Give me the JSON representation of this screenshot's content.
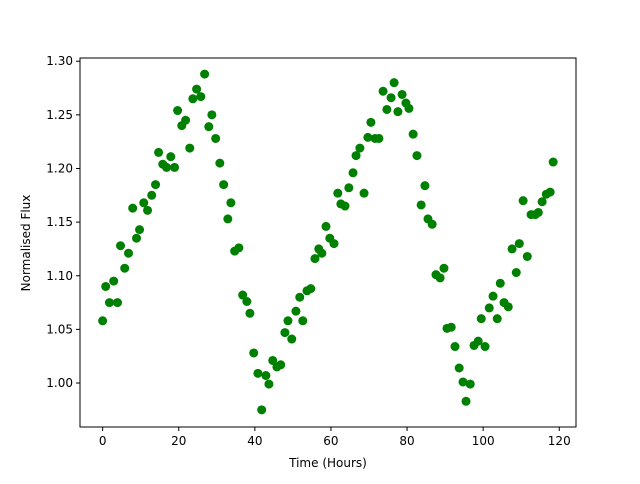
{
  "chart_data": {
    "type": "scatter",
    "xlabel": "Time (Hours)",
    "ylabel": "Normalised Flux",
    "color": "#008000",
    "x": [
      0,
      0.8,
      1.8,
      2.9,
      3.9,
      4.7,
      5.8,
      6.8,
      7.9,
      8.9,
      9.7,
      10.8,
      11.8,
      12.9,
      13.9,
      14.7,
      15.8,
      16.8,
      17.9,
      18.9,
      19.7,
      20.8,
      21.8,
      22.9,
      23.7,
      24.7,
      25.8,
      26.8,
      27.9,
      28.7,
      29.7,
      30.8,
      31.8,
      32.9,
      33.7,
      34.7,
      35.8,
      36.8,
      37.9,
      38.7,
      39.7,
      40.8,
      41.8,
      42.9,
      43.7,
      44.7,
      45.8,
      46.8,
      47.9,
      48.7,
      49.7,
      50.8,
      51.8,
      52.6,
      53.7,
      54.7,
      55.8,
      56.8,
      57.6,
      58.7,
      59.7,
      60.8,
      61.8,
      62.6,
      63.7,
      64.7,
      65.8,
      66.6,
      67.6,
      68.7,
      69.7,
      70.5,
      71.6,
      72.6,
      73.7,
      74.7,
      75.8,
      76.6,
      77.6,
      78.7,
      79.7,
      80.5,
      81.6,
      82.6,
      83.7,
      84.7,
      85.5,
      86.6,
      87.6,
      88.7,
      89.7,
      90.5,
      91.6,
      92.6,
      93.7,
      94.7,
      95.5,
      96.6,
      97.6,
      98.7,
      99.5,
      100.5,
      101.6,
      102.6,
      103.7,
      104.5,
      105.5,
      106.6,
      107.6,
      108.7,
      109.5,
      110.5,
      111.6,
      112.6,
      113.7,
      114.5,
      115.5,
      116.6,
      117.6,
      118.4
    ],
    "y": [
      1.058,
      1.09,
      1.075,
      1.095,
      1.075,
      1.128,
      1.107,
      1.121,
      1.163,
      1.135,
      1.143,
      1.168,
      1.161,
      1.175,
      1.185,
      1.215,
      1.204,
      1.201,
      1.211,
      1.201,
      1.254,
      1.24,
      1.245,
      1.219,
      1.265,
      1.274,
      1.267,
      1.288,
      1.239,
      1.25,
      1.228,
      1.205,
      1.185,
      1.153,
      1.168,
      1.123,
      1.126,
      1.082,
      1.076,
      1.065,
      1.028,
      1.009,
      0.975,
      1.007,
      0.999,
      1.021,
      1.015,
      1.017,
      1.047,
      1.058,
      1.041,
      1.067,
      1.08,
      1.058,
      1.086,
      1.088,
      1.116,
      1.125,
      1.121,
      1.146,
      1.135,
      1.13,
      1.177,
      1.167,
      1.165,
      1.182,
      1.196,
      1.212,
      1.219,
      1.177,
      1.229,
      1.243,
      1.228,
      1.228,
      1.272,
      1.255,
      1.266,
      1.28,
      1.253,
      1.269,
      1.261,
      1.256,
      1.232,
      1.212,
      1.166,
      1.184,
      1.153,
      1.148,
      1.101,
      1.098,
      1.107,
      1.051,
      1.052,
      1.034,
      1.014,
      1.001,
      0.983,
      0.999,
      1.035,
      1.039,
      1.06,
      1.034,
      1.07,
      1.081,
      1.06,
      1.093,
      1.075,
      1.071,
      1.125,
      1.103,
      1.13,
      1.17,
      1.118,
      1.157,
      1.157,
      1.159,
      1.169,
      1.176,
      1.178,
      1.206
    ],
    "xlim": [
      -5.95,
      124.4
    ],
    "ylim": [
      0.959,
      1.303
    ],
    "xticks": [
      0,
      20,
      40,
      60,
      80,
      100,
      120
    ],
    "yticks": [
      {
        "value": 1.0,
        "label": "1.00"
      },
      {
        "value": 1.05,
        "label": "1.05"
      },
      {
        "value": 1.1,
        "label": "1.10"
      },
      {
        "value": 1.15,
        "label": "1.15"
      },
      {
        "value": 1.2,
        "label": "1.20"
      },
      {
        "value": 1.25,
        "label": "1.25"
      },
      {
        "value": 1.3,
        "label": "1.30"
      }
    ]
  }
}
